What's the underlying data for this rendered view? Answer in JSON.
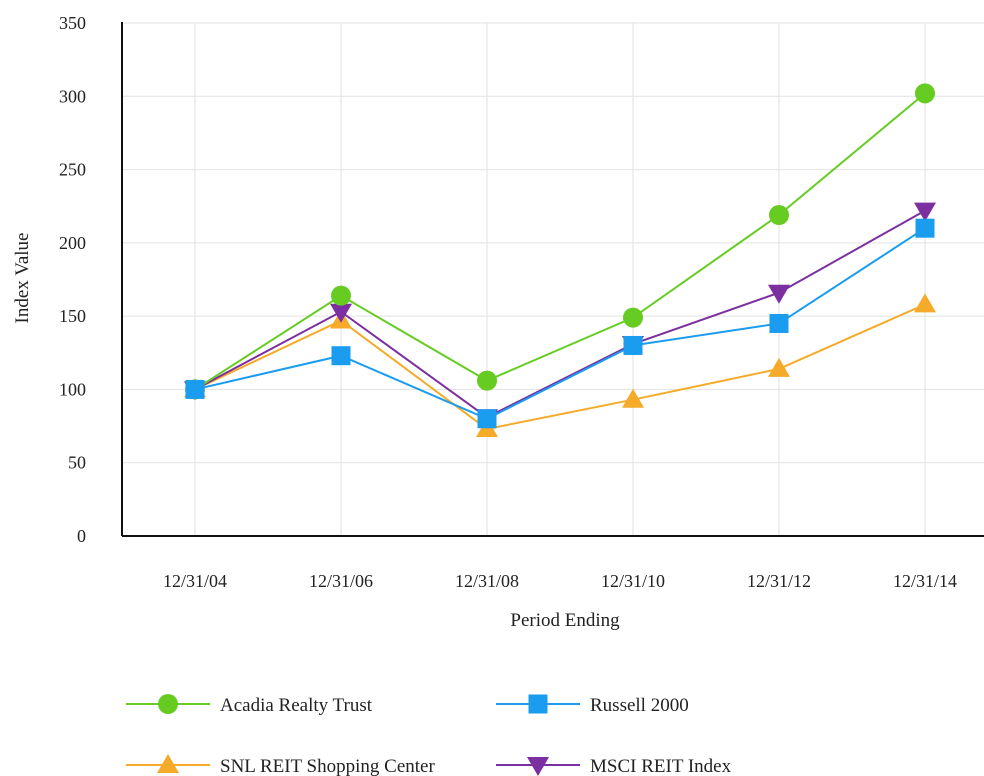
{
  "chart_data": {
    "type": "line",
    "title": "",
    "xlabel": "Period Ending",
    "ylabel": "Index Value",
    "categories": [
      "12/31/04",
      "12/31/06",
      "12/31/08",
      "12/31/10",
      "12/31/12",
      "12/31/14"
    ],
    "ylim": [
      0,
      350
    ],
    "yticks": [
      0,
      50,
      100,
      150,
      200,
      250,
      300,
      350
    ],
    "grid": true,
    "legend_position": "bottom",
    "series": [
      {
        "name": "Acadia Realty Trust",
        "values": [
          100,
          164,
          106,
          149,
          219,
          302
        ],
        "color": "#66cc22",
        "marker": "circle"
      },
      {
        "name": "Russell 2000",
        "values": [
          100,
          123,
          80,
          130,
          145,
          210
        ],
        "color": "#1a9cef",
        "marker": "square"
      },
      {
        "name": "SNL REIT Shopping Center",
        "values": [
          100,
          147,
          73,
          93,
          114,
          158
        ],
        "color": "#f5aa2a",
        "marker": "triangle-up"
      },
      {
        "name": "MSCI REIT Index",
        "values": [
          100,
          153,
          81,
          131,
          166,
          222
        ],
        "color": "#7b2fa0",
        "marker": "triangle-down"
      }
    ]
  }
}
